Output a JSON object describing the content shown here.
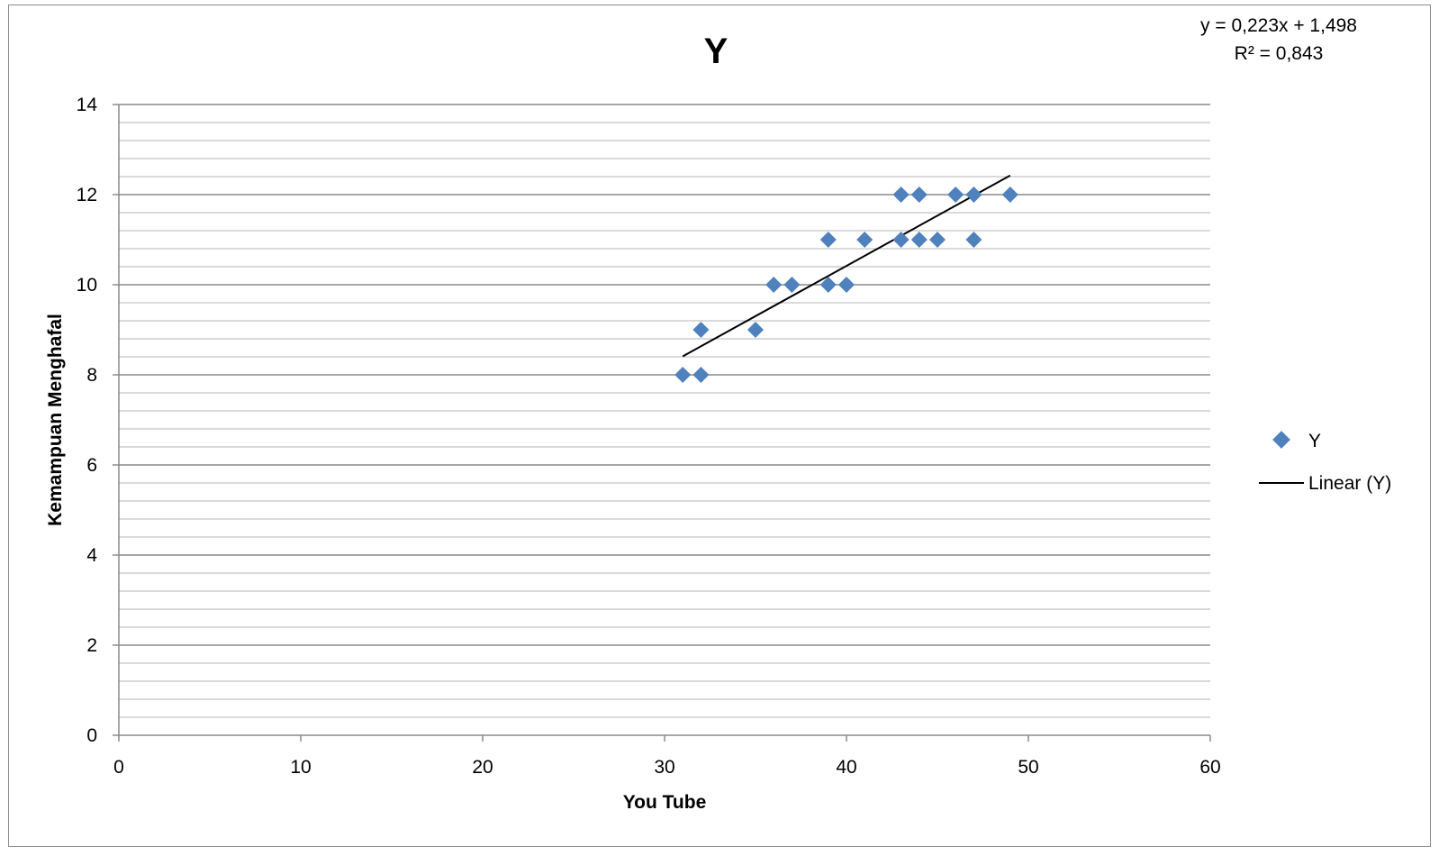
{
  "chart_data": {
    "type": "scatter",
    "title": "Y",
    "xlabel": "You Tube",
    "ylabel": "Kemampuan Menghafal",
    "xlim": [
      0,
      60
    ],
    "ylim": [
      0,
      14
    ],
    "x_ticks": [
      0,
      10,
      20,
      30,
      40,
      50,
      60
    ],
    "y_ticks": [
      0,
      2,
      4,
      6,
      8,
      10,
      12,
      14
    ],
    "y_minor_step": 0.4,
    "grid": true,
    "legend_position": "right",
    "series": [
      {
        "name": "Y",
        "marker": "diamond",
        "color": "#4f81bd",
        "points": [
          [
            31,
            8
          ],
          [
            32,
            8
          ],
          [
            32,
            9
          ],
          [
            35,
            9
          ],
          [
            36,
            10
          ],
          [
            37,
            10
          ],
          [
            39,
            10
          ],
          [
            40,
            10
          ],
          [
            39,
            11
          ],
          [
            41,
            11
          ],
          [
            43,
            11
          ],
          [
            44,
            11
          ],
          [
            45,
            11
          ],
          [
            47,
            11
          ],
          [
            43,
            12
          ],
          [
            44,
            12
          ],
          [
            46,
            12
          ],
          [
            47,
            12
          ],
          [
            49,
            12
          ]
        ]
      }
    ],
    "trendline": {
      "name": "Linear (Y)",
      "type": "linear",
      "slope": 0.223,
      "intercept": 1.498,
      "x_range": [
        31,
        49
      ],
      "color": "#000000",
      "equation_text": "y = 0,223x + 1,498",
      "r2_text": "R² = 0,843"
    },
    "legend": [
      "Y",
      "Linear (Y)"
    ]
  }
}
